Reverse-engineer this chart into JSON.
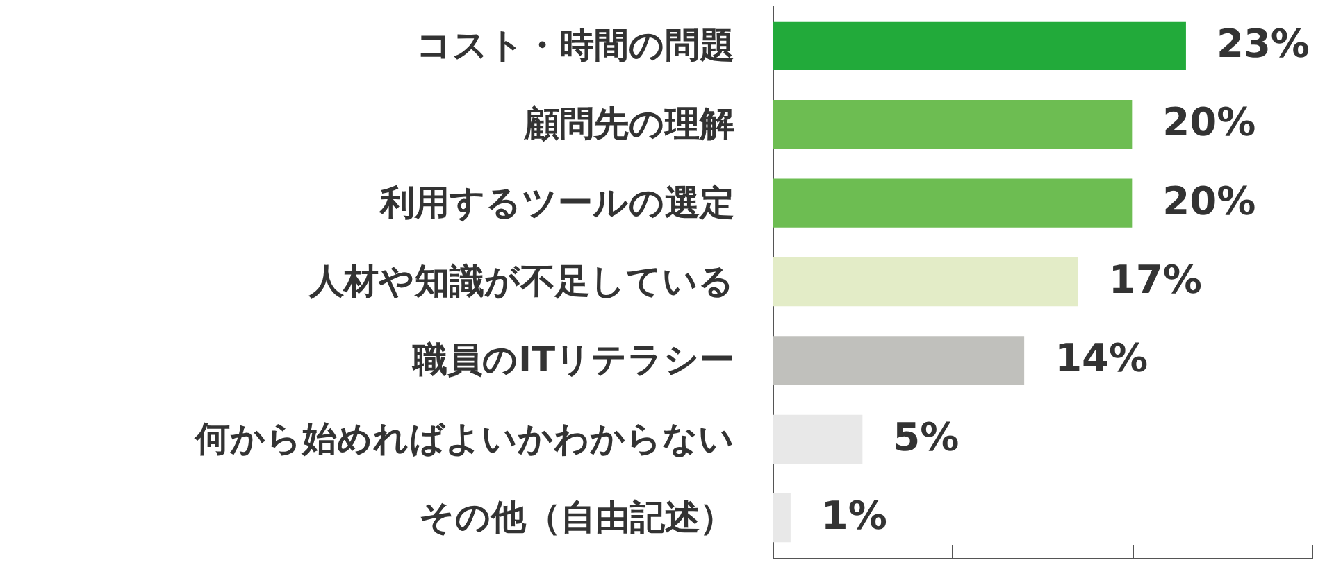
{
  "chart_data": {
    "type": "bar",
    "orientation": "horizontal",
    "categories": [
      "コスト・時間の問題",
      "顧問先の理解",
      "利用するツールの選定",
      "人材や知識が不足している",
      "職員のITリテラシー",
      "何から始めればよいかわからない",
      "その他（自由記述）"
    ],
    "values": [
      23,
      20,
      20,
      17,
      14,
      5,
      1
    ],
    "colors": [
      "#22aa3a",
      "#6dbd52",
      "#6dbd52",
      "#e3ecc7",
      "#c0c0bc",
      "#e8e8e8",
      "#e8e8e8"
    ],
    "value_labels": [
      "23%",
      "20%",
      "20%",
      "17%",
      "14%",
      "5%",
      "1%"
    ],
    "xlim": [
      0,
      30
    ],
    "xticks": [
      {
        "value": 0,
        "label": null
      },
      {
        "value": 10,
        "label": null
      },
      {
        "value": 20,
        "label": null
      },
      {
        "value": 30,
        "label": null
      }
    ],
    "tick_labels": "y",
    "grid": false
  }
}
